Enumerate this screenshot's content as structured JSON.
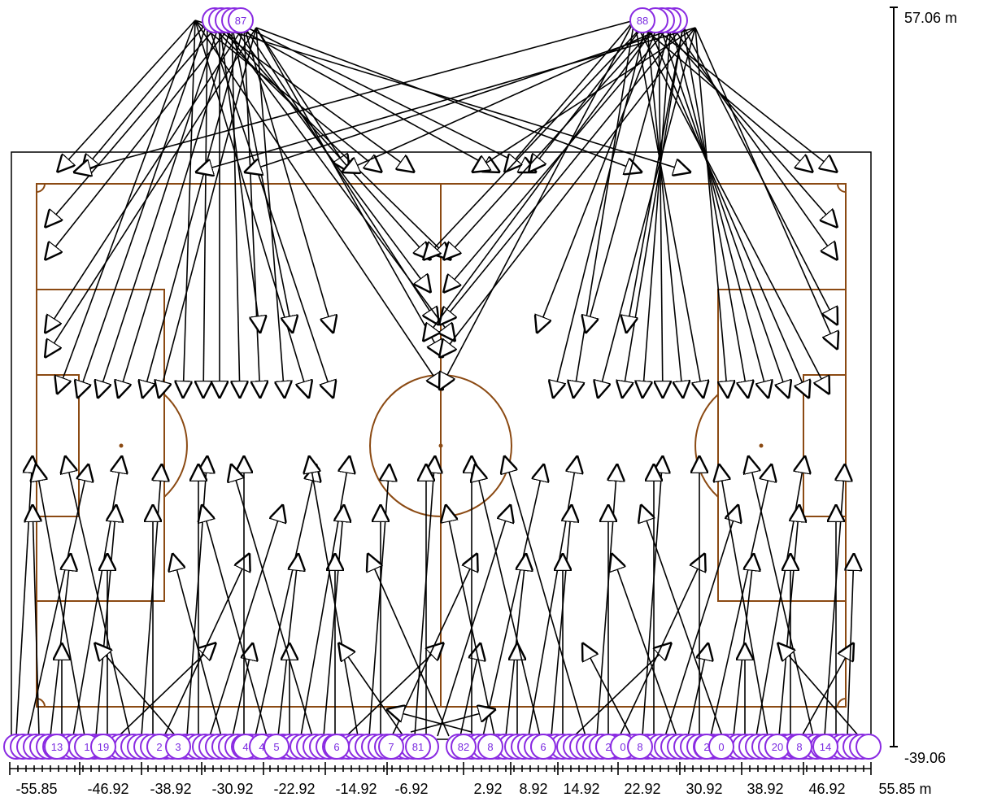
{
  "diagram": {
    "colors": {
      "field_lines": "#8b4a13",
      "aim": "#000000",
      "pole": "#8a2be2",
      "pole_fill": "#ffffff"
    },
    "x_axis": {
      "unit": "m",
      "tick_labels": [
        "-55.85",
        "-46.92",
        "-38.92",
        "-30.92",
        "-22.92",
        "-14.92",
        "-6.92",
        "2.92",
        "8.92",
        "14.92",
        "22.92",
        "30.92",
        "38.92",
        "46.92",
        "55.85 m"
      ]
    },
    "y_axis": {
      "top_label": "57.06 m",
      "bottom_label": "-39.06"
    },
    "poles": {
      "top": [
        {
          "label": "87"
        },
        {
          "label": "88"
        }
      ],
      "bottom_labels": [
        "13",
        "1",
        "19",
        "2",
        "3",
        "4",
        "4",
        "5",
        "6",
        "7",
        "81",
        "82",
        "8",
        "6",
        "2",
        "0",
        "8",
        "2",
        "0",
        "20",
        "8",
        "14"
      ]
    }
  }
}
